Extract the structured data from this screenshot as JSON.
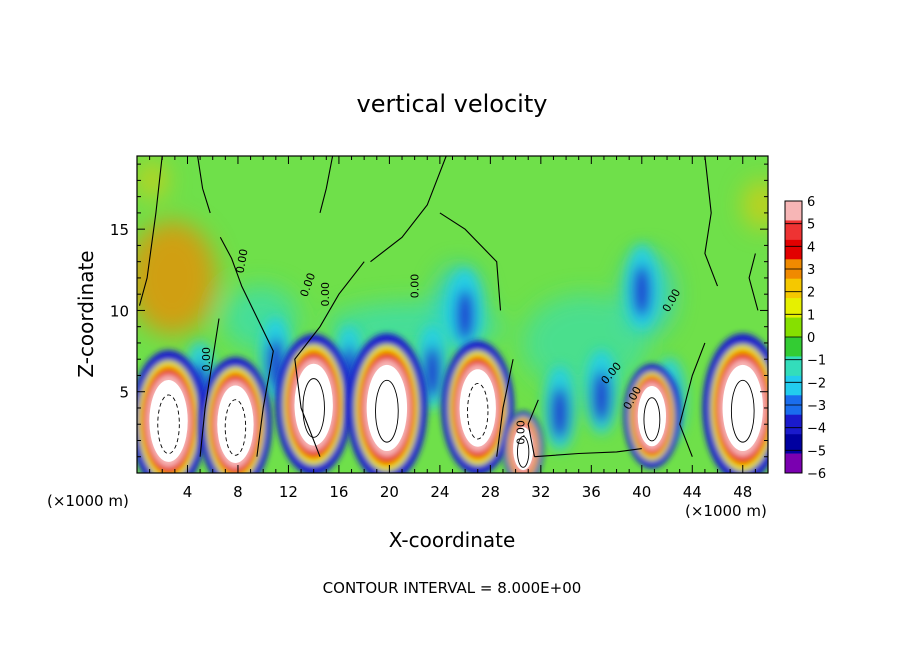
{
  "chart_data": {
    "type": "heatmap",
    "title": "vertical velocity",
    "xlabel": "X-coordinate",
    "ylabel": "Z-coordinate",
    "x_units_left": "(×1000 m)",
    "x_units_right": "(×1000 m)",
    "footer": "CONTOUR INTERVAL = 8.000E+00",
    "xlim": [
      0,
      50
    ],
    "ylim": [
      0,
      19.5
    ],
    "xticks": [
      4,
      8,
      12,
      16,
      20,
      24,
      28,
      32,
      36,
      40,
      44,
      48
    ],
    "yticks": [
      5,
      10,
      15
    ],
    "contour_labels": [
      "0.00",
      "0.00",
      "0.00",
      "0.00",
      "0.00",
      "0.00",
      "0.00",
      "0.00",
      "0.00"
    ],
    "colorbar": {
      "levels": [
        6,
        5,
        4,
        3,
        2,
        1,
        0,
        -1,
        -2,
        -3,
        -4,
        -5,
        -6
      ],
      "colors": [
        "#f7b6b6",
        "#ee3333",
        "#e20000",
        "#f08a00",
        "#f5c800",
        "#e6f000",
        "#86e000",
        "#33cc33",
        "#33ddbb",
        "#22ccee",
        "#1a6dee",
        "#1a1acc",
        "#0000a0",
        "#7a00b0"
      ]
    },
    "cells": [
      {
        "x": 2.5,
        "z": 3.2,
        "w": 0.95
      },
      {
        "x": 7.8,
        "z": 3.0,
        "w": 0.9
      },
      {
        "x": 14.0,
        "z": 4.2,
        "w": 0.95
      },
      {
        "x": 19.8,
        "z": 4.0,
        "w": 1.0
      },
      {
        "x": 27.0,
        "z": 4.0,
        "w": 0.9
      },
      {
        "x": 30.6,
        "z": 1.5,
        "w": 0.5
      },
      {
        "x": 40.8,
        "z": 3.5,
        "w": 0.7
      },
      {
        "x": 48.0,
        "z": 4.0,
        "w": 1.0
      }
    ],
    "downdrafts": [
      {
        "x": 5.0,
        "z": 5.5
      },
      {
        "x": 11.0,
        "z": 7.0
      },
      {
        "x": 16.8,
        "z": 6.5
      },
      {
        "x": 23.4,
        "z": 6.5
      },
      {
        "x": 26.0,
        "z": 10.0
      },
      {
        "x": 33.5,
        "z": 4.0
      },
      {
        "x": 36.8,
        "z": 5.0
      },
      {
        "x": 42.2,
        "z": 4.5
      },
      {
        "x": 40.0,
        "z": 11.5
      }
    ]
  }
}
